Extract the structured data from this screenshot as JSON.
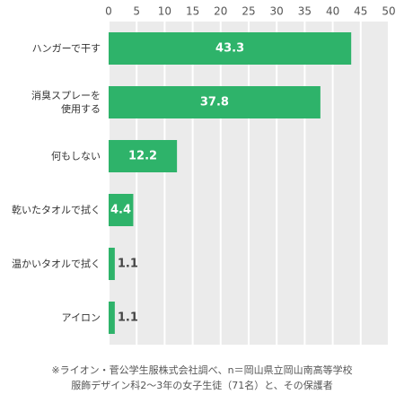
{
  "chart_data": {
    "type": "bar",
    "orientation": "horizontal",
    "categories": [
      "ハンガーで干す",
      "消臭スプレーを\n使用する",
      "何もしない",
      "乾いたタオルで拭く",
      "温かいタオルで拭く",
      "アイロン"
    ],
    "values": [
      43.3,
      37.8,
      12.2,
      4.4,
      1.1,
      1.1
    ],
    "color": "#2eb36a",
    "xlim": [
      0,
      50
    ],
    "xticks": [
      0,
      5,
      10,
      15,
      20,
      25,
      30,
      35,
      40,
      45,
      50
    ],
    "grid": true,
    "source": "※ライオン・菅公学生服株式会社調べ、n＝岡山県立岡山南高等学校\n服飾デザイン科2〜3年の女子生徒（71名）と、その保護者"
  }
}
